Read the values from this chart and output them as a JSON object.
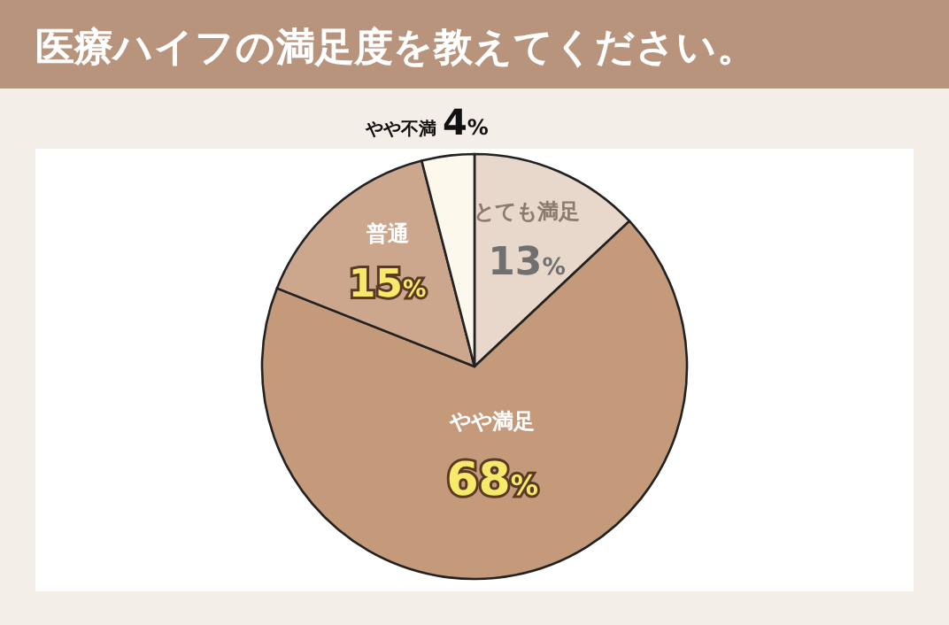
{
  "chart_data": {
    "type": "pie",
    "title": "医療ハイフの満足度を教えてください。",
    "categories": [
      "とても満足",
      "やや満足",
      "普通",
      "やや不満"
    ],
    "values": [
      13,
      68,
      15,
      4
    ],
    "colors": [
      "#e8d8cb",
      "#c49a7b",
      "#cca78d",
      "#fdf8ec"
    ],
    "value_labels": [
      "13%",
      "68%",
      "15%",
      "4%"
    ]
  }
}
